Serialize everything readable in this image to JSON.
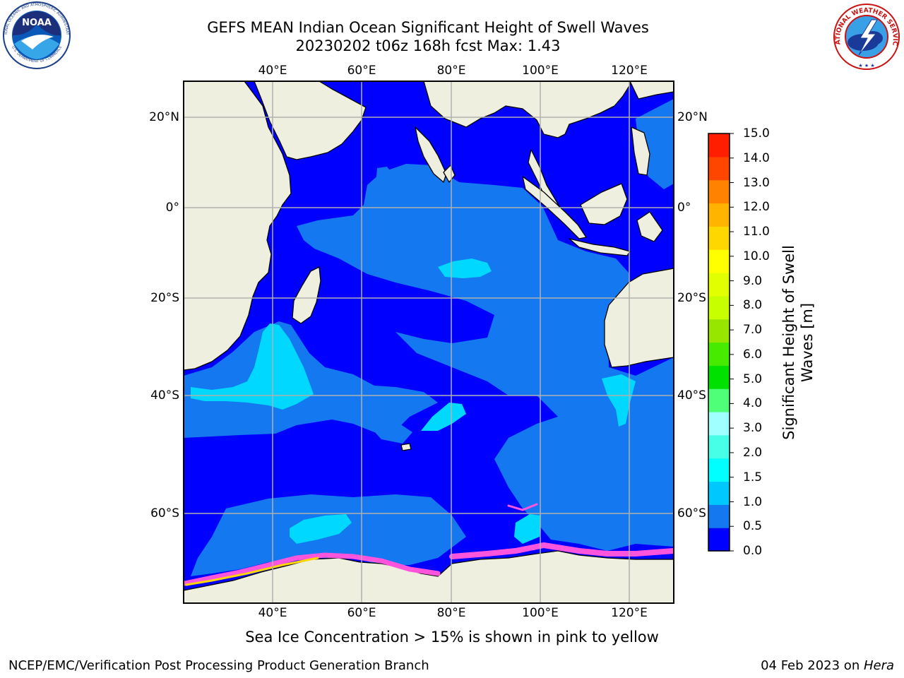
{
  "header": {
    "title": "GEFS MEAN Indian Ocean Significant Height of Swell Waves",
    "subtitle": "20230202 t06z 168h fcst   Max: 1.43"
  },
  "logos": {
    "noaa": {
      "icon": "noaa-logo",
      "text": "NOAA",
      "ring_top": "NATIONAL OCEANIC AND ATMOSPHERIC ADMINISTRATION",
      "ring_bottom": "U.S. DEPARTMENT OF COMMERCE"
    },
    "nws": {
      "icon": "nws-logo",
      "ring": "NATIONAL WEATHER SERVICE"
    }
  },
  "map": {
    "lon_ticks": [
      "40°E",
      "60°E",
      "80°E",
      "100°E",
      "120°E"
    ],
    "lat_ticks_left": [
      "20°N",
      "0°",
      "20°S",
      "40°S",
      "60°S"
    ],
    "lat_ticks_right": [
      "20°N",
      "0°",
      "20°S",
      "40°S",
      "60°S"
    ],
    "land_color": "#efefe0",
    "ocean_base_color": "#0000ff",
    "grid": true
  },
  "colorbar": {
    "title": "Significant Height of Swell Waves [m]",
    "levels": [
      "0.0",
      "0.5",
      "1.0",
      "1.5",
      "2.0",
      "3.0",
      "4.0",
      "5.0",
      "6.0",
      "7.0",
      "8.0",
      "9.0",
      "10.0",
      "11.0",
      "12.0",
      "13.0",
      "14.0",
      "15.0"
    ],
    "colors": [
      "#0000ff",
      "#1478f0",
      "#00c8ff",
      "#00ffff",
      "#46ffe6",
      "#a0ffff",
      "#50ff78",
      "#00e100",
      "#46eb00",
      "#96e600",
      "#c8ff00",
      "#e1ff00",
      "#ffff00",
      "#ffd700",
      "#ffb400",
      "#ff8200",
      "#ff4600",
      "#ff1e00"
    ]
  },
  "note": "Sea Ice Concentration > 15% is shown in pink to yellow",
  "footer": {
    "left": "NCEP/EMC/Verification Post Processing Product Generation Branch",
    "right_prefix": "04 Feb 2023 on ",
    "right_host": "Hera"
  }
}
